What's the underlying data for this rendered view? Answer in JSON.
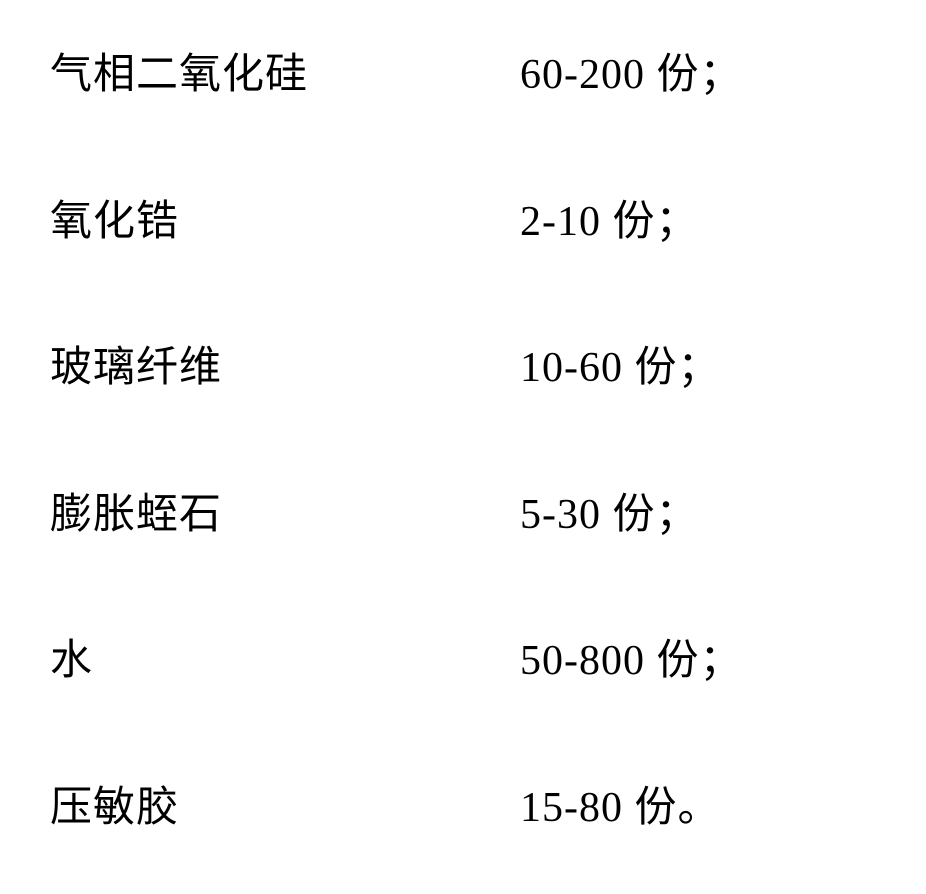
{
  "document": {
    "background_color": "#ffffff",
    "text_color": "#000000",
    "font_size": 42,
    "font_family": "SimSun",
    "rows": [
      {
        "label": "气相二氧化硅",
        "value": "60-200 份；"
      },
      {
        "label": "氧化锆",
        "value": "2-10 份；"
      },
      {
        "label": "玻璃纤维",
        "value": "10-60 份；"
      },
      {
        "label": "膨胀蛭石",
        "value": "5-30 份；"
      },
      {
        "label": "水",
        "value": "50-800 份；"
      },
      {
        "label": "压敏胶",
        "value": "15-80 份。"
      }
    ]
  }
}
